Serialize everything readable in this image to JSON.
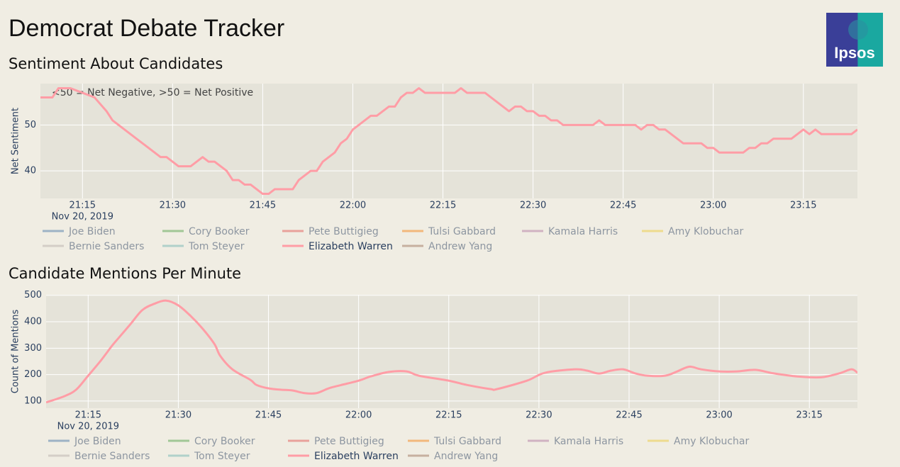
{
  "title": "Democrat Debate Tracker",
  "logo": "Ipsos",
  "chart_data": [
    {
      "type": "line",
      "title": "Sentiment About Candidates",
      "annotation": "<50 = Net Negative, >50 = Net Positive",
      "y_label": "Net Sentiment",
      "x_date_label": "Nov 20, 2019",
      "smooth": false,
      "grid": true,
      "xlim": [
        "2019-11-20 21:08",
        "2019-11-20 23:24"
      ],
      "xticks": [
        {
          "value": "2019-11-20 21:15",
          "label": "21:15"
        },
        {
          "value": "2019-11-20 21:30",
          "label": "21:30"
        },
        {
          "value": "2019-11-20 21:45",
          "label": "21:45"
        },
        {
          "value": "2019-11-20 22:00",
          "label": "22:00"
        },
        {
          "value": "2019-11-20 22:15",
          "label": "22:15"
        },
        {
          "value": "2019-11-20 22:30",
          "label": "22:30"
        },
        {
          "value": "2019-11-20 22:45",
          "label": "22:45"
        },
        {
          "value": "2019-11-20 23:00",
          "label": "23:00"
        },
        {
          "value": "2019-11-20 23:15",
          "label": "23:15"
        }
      ],
      "ylim": [
        34,
        59
      ],
      "yticks": [
        40,
        50
      ],
      "x": [
        "2019-11-20 21:08",
        "2019-11-20 21:10",
        "2019-11-20 21:11",
        "2019-11-20 21:13",
        "2019-11-20 21:15",
        "2019-11-20 21:17",
        "2019-11-20 21:19",
        "2019-11-20 21:20",
        "2019-11-20 21:22",
        "2019-11-20 21:24",
        "2019-11-20 21:26",
        "2019-11-20 21:28",
        "2019-11-20 21:29",
        "2019-11-20 21:31",
        "2019-11-20 21:33",
        "2019-11-20 21:35",
        "2019-11-20 21:36",
        "2019-11-20 21:37",
        "2019-11-20 21:39",
        "2019-11-20 21:40",
        "2019-11-20 21:41",
        "2019-11-20 21:42",
        "2019-11-20 21:43",
        "2019-11-20 21:45",
        "2019-11-20 21:46",
        "2019-11-20 21:47",
        "2019-11-20 21:50",
        "2019-11-20 21:51",
        "2019-11-20 21:53",
        "2019-11-20 21:54",
        "2019-11-20 21:55",
        "2019-11-20 21:57",
        "2019-11-20 21:58",
        "2019-11-20 21:59",
        "2019-11-20 22:00",
        "2019-11-20 22:02",
        "2019-11-20 22:03",
        "2019-11-20 22:04",
        "2019-11-20 22:06",
        "2019-11-20 22:07",
        "2019-11-20 22:08",
        "2019-11-20 22:09",
        "2019-11-20 22:10",
        "2019-11-20 22:11",
        "2019-11-20 22:12",
        "2019-11-20 22:17",
        "2019-11-20 22:18",
        "2019-11-20 22:19",
        "2019-11-20 22:22",
        "2019-11-20 22:24",
        "2019-11-20 22:26",
        "2019-11-20 22:27",
        "2019-11-20 22:28",
        "2019-11-20 22:29",
        "2019-11-20 22:30",
        "2019-11-20 22:31",
        "2019-11-20 22:32",
        "2019-11-20 22:33",
        "2019-11-20 22:34",
        "2019-11-20 22:35",
        "2019-11-20 22:40",
        "2019-11-20 22:41",
        "2019-11-20 22:42",
        "2019-11-20 22:47",
        "2019-11-20 22:48",
        "2019-11-20 22:49",
        "2019-11-20 22:50",
        "2019-11-20 22:51",
        "2019-11-20 22:52",
        "2019-11-20 22:55",
        "2019-11-20 22:58",
        "2019-11-20 22:59",
        "2019-11-20 23:00",
        "2019-11-20 23:01",
        "2019-11-20 23:05",
        "2019-11-20 23:06",
        "2019-11-20 23:07",
        "2019-11-20 23:08",
        "2019-11-20 23:09",
        "2019-11-20 23:10",
        "2019-11-20 23:13",
        "2019-11-20 23:15",
        "2019-11-20 23:16",
        "2019-11-20 23:17",
        "2019-11-20 23:18",
        "2019-11-20 23:23",
        "2019-11-20 23:24"
      ],
      "series": [
        {
          "name": "Joe Biden",
          "color": "#4c78a8",
          "visible": false
        },
        {
          "name": "Cory Booker",
          "color": "#54a24b",
          "visible": false
        },
        {
          "name": "Pete Buttigieg",
          "color": "#e45756",
          "visible": false
        },
        {
          "name": "Tulsi Gabbard",
          "color": "#f58518",
          "visible": false
        },
        {
          "name": "Kamala Harris",
          "color": "#b279a2",
          "visible": false
        },
        {
          "name": "Amy Klobuchar",
          "color": "#eeca3b",
          "visible": false
        },
        {
          "name": "Bernie Sanders",
          "color": "#bab0ac",
          "visible": false
        },
        {
          "name": "Tom Steyer",
          "color": "#72b7b2",
          "visible": false
        },
        {
          "name": "Elizabeth Warren",
          "color": "#ff9da6",
          "visible": true,
          "values": [
            56,
            56,
            58,
            58,
            57,
            56,
            53,
            51,
            49,
            47,
            45,
            43,
            43,
            41,
            41,
            43,
            42,
            42,
            40,
            38,
            38,
            37,
            37,
            35,
            35,
            36,
            36,
            38,
            40,
            40,
            42,
            44,
            46,
            47,
            49,
            51,
            52,
            52,
            54,
            54,
            56,
            57,
            57,
            58,
            57,
            57,
            58,
            57,
            57,
            55,
            53,
            54,
            54,
            53,
            53,
            52,
            52,
            51,
            51,
            50,
            50,
            51,
            50,
            50,
            49,
            50,
            50,
            49,
            49,
            46,
            46,
            45,
            45,
            44,
            44,
            45,
            45,
            46,
            46,
            47,
            47,
            49,
            48,
            49,
            48,
            48,
            49
          ]
        },
        {
          "name": "Andrew Yang",
          "color": "#9d755d",
          "visible": false
        }
      ]
    },
    {
      "type": "line",
      "title": "Candidate Mentions Per Minute",
      "y_label": "Count of Mentions",
      "x_date_label": "Nov 20, 2019",
      "smooth": true,
      "grid": true,
      "xlim": [
        "2019-11-20 21:08",
        "2019-11-20 23:23"
      ],
      "xticks": [
        {
          "value": "2019-11-20 21:15",
          "label": "21:15"
        },
        {
          "value": "2019-11-20 21:30",
          "label": "21:30"
        },
        {
          "value": "2019-11-20 21:45",
          "label": "21:45"
        },
        {
          "value": "2019-11-20 22:00",
          "label": "22:00"
        },
        {
          "value": "2019-11-20 22:15",
          "label": "22:15"
        },
        {
          "value": "2019-11-20 22:30",
          "label": "22:30"
        },
        {
          "value": "2019-11-20 22:45",
          "label": "22:45"
        },
        {
          "value": "2019-11-20 23:00",
          "label": "23:00"
        },
        {
          "value": "2019-11-20 23:15",
          "label": "23:15"
        }
      ],
      "ylim": [
        73,
        502
      ],
      "yticks": [
        100,
        200,
        300,
        400,
        500
      ],
      "x": [
        "2019-11-20 21:08",
        "2019-11-20 21:11",
        "2019-11-20 21:13",
        "2019-11-20 21:15",
        "2019-11-20 21:17",
        "2019-11-20 21:19",
        "2019-11-20 21:20",
        "2019-11-20 21:22",
        "2019-11-20 21:24",
        "2019-11-20 21:26",
        "2019-11-20 21:28",
        "2019-11-20 21:30",
        "2019-11-20 21:32",
        "2019-11-20 21:34",
        "2019-11-20 21:36",
        "2019-11-20 21:37",
        "2019-11-20 21:39",
        "2019-11-20 21:42",
        "2019-11-20 21:43",
        "2019-11-20 21:45",
        "2019-11-20 21:47",
        "2019-11-20 21:49",
        "2019-11-20 21:51",
        "2019-11-20 21:53",
        "2019-11-20 21:55",
        "2019-11-20 21:57",
        "2019-11-20 22:00",
        "2019-11-20 22:02",
        "2019-11-20 22:05",
        "2019-11-20 22:08",
        "2019-11-20 22:10",
        "2019-11-20 22:15",
        "2019-11-20 22:18",
        "2019-11-20 22:22",
        "2019-11-20 22:23",
        "2019-11-20 22:28",
        "2019-11-20 22:31",
        "2019-11-20 22:36",
        "2019-11-20 22:38",
        "2019-11-20 22:40",
        "2019-11-20 22:42",
        "2019-11-20 22:44",
        "2019-11-20 22:46",
        "2019-11-20 22:48",
        "2019-11-20 22:51",
        "2019-11-20 22:53",
        "2019-11-20 22:55",
        "2019-11-20 22:57",
        "2019-11-20 23:00",
        "2019-11-20 23:03",
        "2019-11-20 23:06",
        "2019-11-20 23:09",
        "2019-11-20 23:13",
        "2019-11-20 23:17",
        "2019-11-20 23:20",
        "2019-11-20 23:22",
        "2019-11-20 23:23"
      ],
      "series": [
        {
          "name": "Joe Biden",
          "color": "#4c78a8",
          "visible": false
        },
        {
          "name": "Cory Booker",
          "color": "#54a24b",
          "visible": false
        },
        {
          "name": "Pete Buttigieg",
          "color": "#e45756",
          "visible": false
        },
        {
          "name": "Tulsi Gabbard",
          "color": "#f58518",
          "visible": false
        },
        {
          "name": "Kamala Harris",
          "color": "#b279a2",
          "visible": false
        },
        {
          "name": "Amy Klobuchar",
          "color": "#eeca3b",
          "visible": false
        },
        {
          "name": "Bernie Sanders",
          "color": "#bab0ac",
          "visible": false
        },
        {
          "name": "Tom Steyer",
          "color": "#72b7b2",
          "visible": false
        },
        {
          "name": "Elizabeth Warren",
          "color": "#ff9da6",
          "visible": true,
          "values": [
            95,
            118,
            143,
            196,
            250,
            310,
            337,
            390,
            444,
            468,
            480,
            462,
            423,
            375,
            316,
            270,
            220,
            180,
            161,
            148,
            143,
            140,
            130,
            130,
            148,
            160,
            177,
            193,
            210,
            212,
            196,
            177,
            161,
            145,
            145,
            177,
            207,
            220,
            215,
            204,
            215,
            220,
            205,
            196,
            196,
            212,
            230,
            220,
            212,
            212,
            218,
            205,
            193,
            190,
            205,
            220,
            207
          ]
        },
        {
          "name": "Andrew Yang",
          "color": "#9d755d",
          "visible": false
        }
      ]
    }
  ]
}
